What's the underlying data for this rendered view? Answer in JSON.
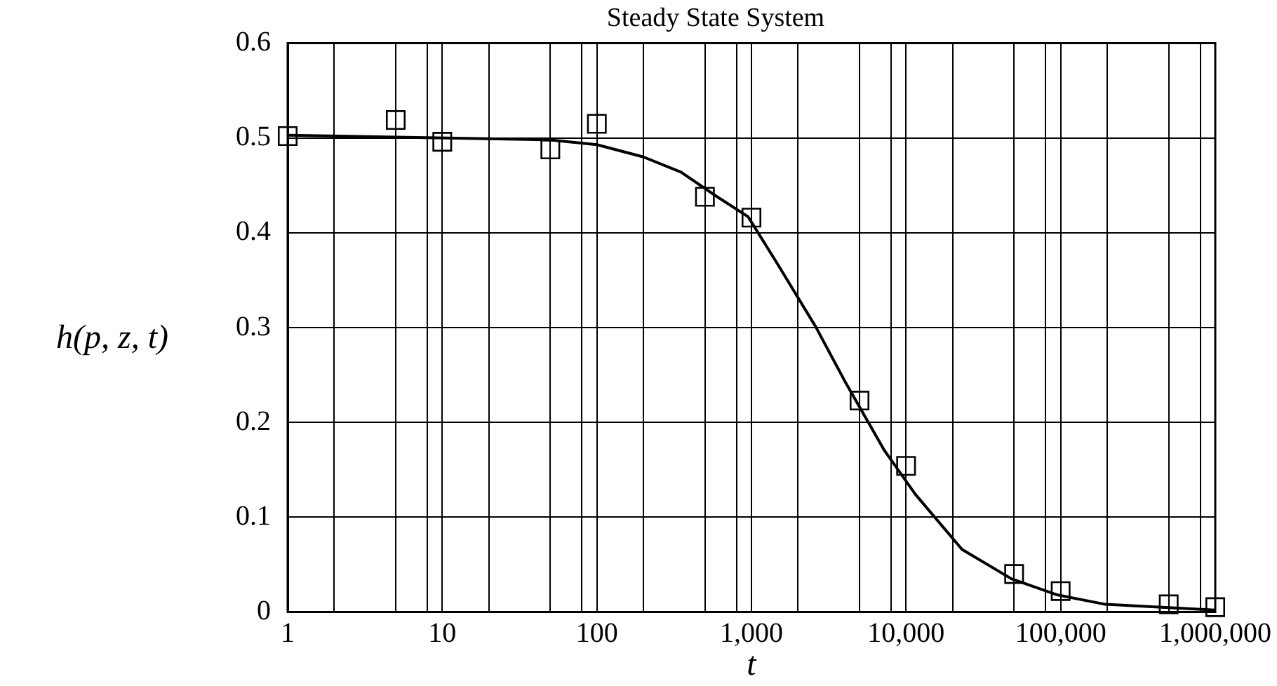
{
  "chart_data": {
    "type": "scatter",
    "title": "Steady State System",
    "xlabel": "t",
    "ylabel": "h(p, z, t)",
    "log": "x",
    "grid": true,
    "legend": false,
    "xlim": [
      1,
      1000000
    ],
    "xticks": [
      1,
      {
        "value": 2,
        "label": null
      },
      {
        "value": 5,
        "label": null
      },
      {
        "value": 8,
        "label": null
      },
      10,
      {
        "value": 20,
        "label": null
      },
      {
        "value": 50,
        "label": null
      },
      {
        "value": 80,
        "label": null
      },
      100,
      {
        "value": 200,
        "label": null
      },
      {
        "value": 500,
        "label": null
      },
      {
        "value": 800,
        "label": null
      },
      {
        "value": 1000,
        "label": "1,000"
      },
      {
        "value": 2000,
        "label": null
      },
      {
        "value": 5000,
        "label": null
      },
      {
        "value": 8000,
        "label": null
      },
      {
        "value": 10000,
        "label": "10,000"
      },
      {
        "value": 20000,
        "label": null
      },
      {
        "value": 50000,
        "label": null
      },
      {
        "value": 80000,
        "label": null
      },
      {
        "value": 100000,
        "label": "100,000"
      },
      {
        "value": 200000,
        "label": null
      },
      {
        "value": 500000,
        "label": null
      },
      {
        "value": 800000,
        "label": null
      },
      {
        "value": 1000000,
        "label": "1,000,000"
      }
    ],
    "ylim": [
      0,
      0.6
    ],
    "yticks": [
      0,
      0.1,
      0.2,
      0.3,
      0.4,
      0.5,
      0.6
    ],
    "series": [
      {
        "type": "scatter",
        "marker": "square",
        "color": "#000000",
        "x": [
          1,
          5,
          10,
          50,
          100,
          500,
          1000,
          5000,
          10000,
          50000,
          100000,
          500000,
          1000000
        ],
        "values": [
          0.502,
          0.519,
          0.496,
          0.488,
          0.515,
          0.438,
          0.416,
          0.223,
          0.154,
          0.04,
          0.022,
          0.008,
          0.005
        ]
      },
      {
        "type": "line",
        "marker": "none",
        "line_style": "solid",
        "color": "#000000",
        "x": [
          1,
          50,
          100,
          200,
          350,
          600,
          950,
          1450,
          2600,
          4000,
          7200,
          11500,
          23000,
          48000,
          95000,
          195000,
          1000000
        ],
        "values": [
          0.503,
          0.498,
          0.493,
          0.48,
          0.464,
          0.438,
          0.417,
          0.369,
          0.301,
          0.244,
          0.171,
          0.124,
          0.066,
          0.035,
          0.018,
          0.008,
          0.002
        ]
      }
    ]
  }
}
